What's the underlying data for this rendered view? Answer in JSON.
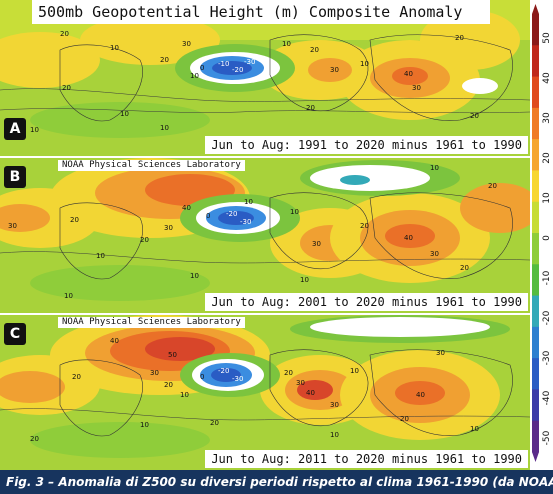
{
  "title": "500mb Geopotential Height (m) Composite Anomaly",
  "source_label": "NOAA Physical Sciences Laboratory",
  "panels": [
    {
      "letter": "A",
      "period": "Jun to Aug: 1991 to 2020 minus 1961 to 1990",
      "contour_labels": [
        "20",
        "10",
        "30",
        "20",
        "10",
        "0",
        "-10",
        "-20",
        "-30",
        "10",
        "20",
        "30",
        "40",
        "30",
        "20",
        "10",
        "20",
        "10",
        "10",
        "10",
        "20",
        "20"
      ]
    },
    {
      "letter": "B",
      "period": "Jun to Aug: 2001 to 2020 minus 1961 to 1990",
      "contour_labels": [
        "30",
        "40",
        "30",
        "20",
        "10",
        "0",
        "-20",
        "-30",
        "10",
        "20",
        "30",
        "40",
        "30",
        "10",
        "20",
        "10",
        "10",
        "20",
        "10",
        "10",
        "20"
      ]
    },
    {
      "letter": "C",
      "period": "Jun to Aug: 2011 to 2020 minus 1961 to 1990",
      "contour_labels": [
        "40",
        "30",
        "20",
        "10",
        "0",
        "-20",
        "-30",
        "20",
        "30",
        "40",
        "50",
        "30",
        "40",
        "30",
        "20",
        "10",
        "20",
        "20",
        "10",
        "20",
        "10",
        "10"
      ]
    }
  ],
  "colorbar": {
    "tick_labels": [
      "50",
      "40",
      "30",
      "20",
      "10",
      "0",
      "-10",
      "-20",
      "-30",
      "-40",
      "-50"
    ],
    "colors": [
      "#8b1a1a",
      "#c0281c",
      "#e04a1e",
      "#f07a26",
      "#f6a630",
      "#f7d631",
      "#c7dc36",
      "#8fcd3a",
      "#55bc40",
      "#33a9b8",
      "#2d7fd0",
      "#2a5cc4",
      "#3b3aa8",
      "#5a2a8a"
    ]
  },
  "caption": "Fig. 3 – Anomalia di Z500 su diversi periodi rispetto al clima 1961-1990 (da NOAA)"
}
